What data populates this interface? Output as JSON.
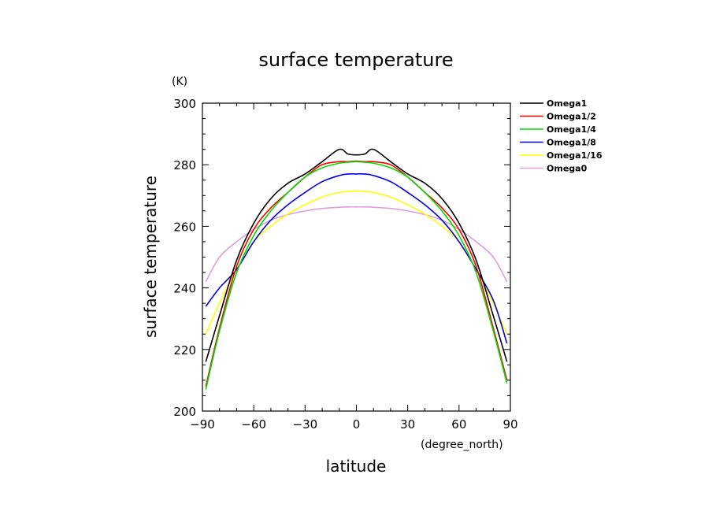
{
  "chart_data": {
    "type": "line",
    "title": "surface temperature",
    "xlabel": "latitude",
    "ylabel": "surface temperature",
    "xunit": "(degree_north)",
    "yunit": "(K)",
    "xlim": [
      -90,
      90
    ],
    "ylim": [
      200,
      300
    ],
    "xticks": [
      -90,
      -60,
      -30,
      0,
      30,
      60,
      90
    ],
    "xtick_labels": [
      "−90",
      "−60",
      "−30",
      "0",
      "30",
      "60",
      "90"
    ],
    "yticks": [
      200,
      220,
      240,
      260,
      280,
      300
    ],
    "ytick_labels": [
      "200",
      "220",
      "240",
      "260",
      "280",
      "300"
    ],
    "legend_position": "right",
    "x": [
      -88,
      -80,
      -70,
      -60,
      -50,
      -40,
      -30,
      -20,
      -10,
      -5,
      0,
      5,
      10,
      20,
      30,
      40,
      50,
      60,
      70,
      80,
      88
    ],
    "series": [
      {
        "name": "Omega1",
        "color": "#000000",
        "values": [
          216,
          231,
          249,
          261,
          269,
          274,
          277,
          281,
          285,
          283.5,
          283.2,
          283.5,
          285,
          281,
          277,
          274,
          269,
          261,
          249,
          231,
          216
        ]
      },
      {
        "name": "Omega1/2",
        "color": "#ff0000",
        "values": [
          208,
          227,
          247,
          259,
          266,
          271,
          276,
          280,
          281,
          281,
          281.2,
          281,
          281,
          280,
          276,
          271,
          266,
          259,
          247,
          227,
          210
        ]
      },
      {
        "name": "Omega1/4",
        "color": "#00dd00",
        "values": [
          207,
          226,
          245,
          257,
          265,
          271,
          276,
          279,
          280.5,
          280.8,
          281,
          280.8,
          280.5,
          279,
          276,
          271,
          265,
          257,
          245,
          226,
          209
        ]
      },
      {
        "name": "Omega1/8",
        "color": "#0000ee",
        "values": [
          234,
          240,
          246,
          255,
          262,
          267,
          271,
          274.5,
          276.5,
          277,
          277,
          277,
          276.5,
          274.5,
          271,
          267,
          262,
          255,
          246,
          236,
          222
        ]
      },
      {
        "name": "Omega1/16",
        "color": "#ffff00",
        "values": [
          225,
          235,
          246,
          255,
          260,
          264,
          267,
          269.5,
          271,
          271.3,
          271.5,
          271.3,
          271,
          269.5,
          267,
          264,
          260,
          255,
          246,
          235,
          225
        ]
      },
      {
        "name": "Omega0",
        "color": "#dda0dd",
        "values": [
          242,
          250,
          255,
          259,
          262,
          263.8,
          265,
          265.8,
          266.2,
          266.3,
          266.3,
          266.3,
          266.2,
          265.8,
          265,
          263.8,
          262,
          259,
          255,
          250,
          242
        ]
      }
    ]
  }
}
